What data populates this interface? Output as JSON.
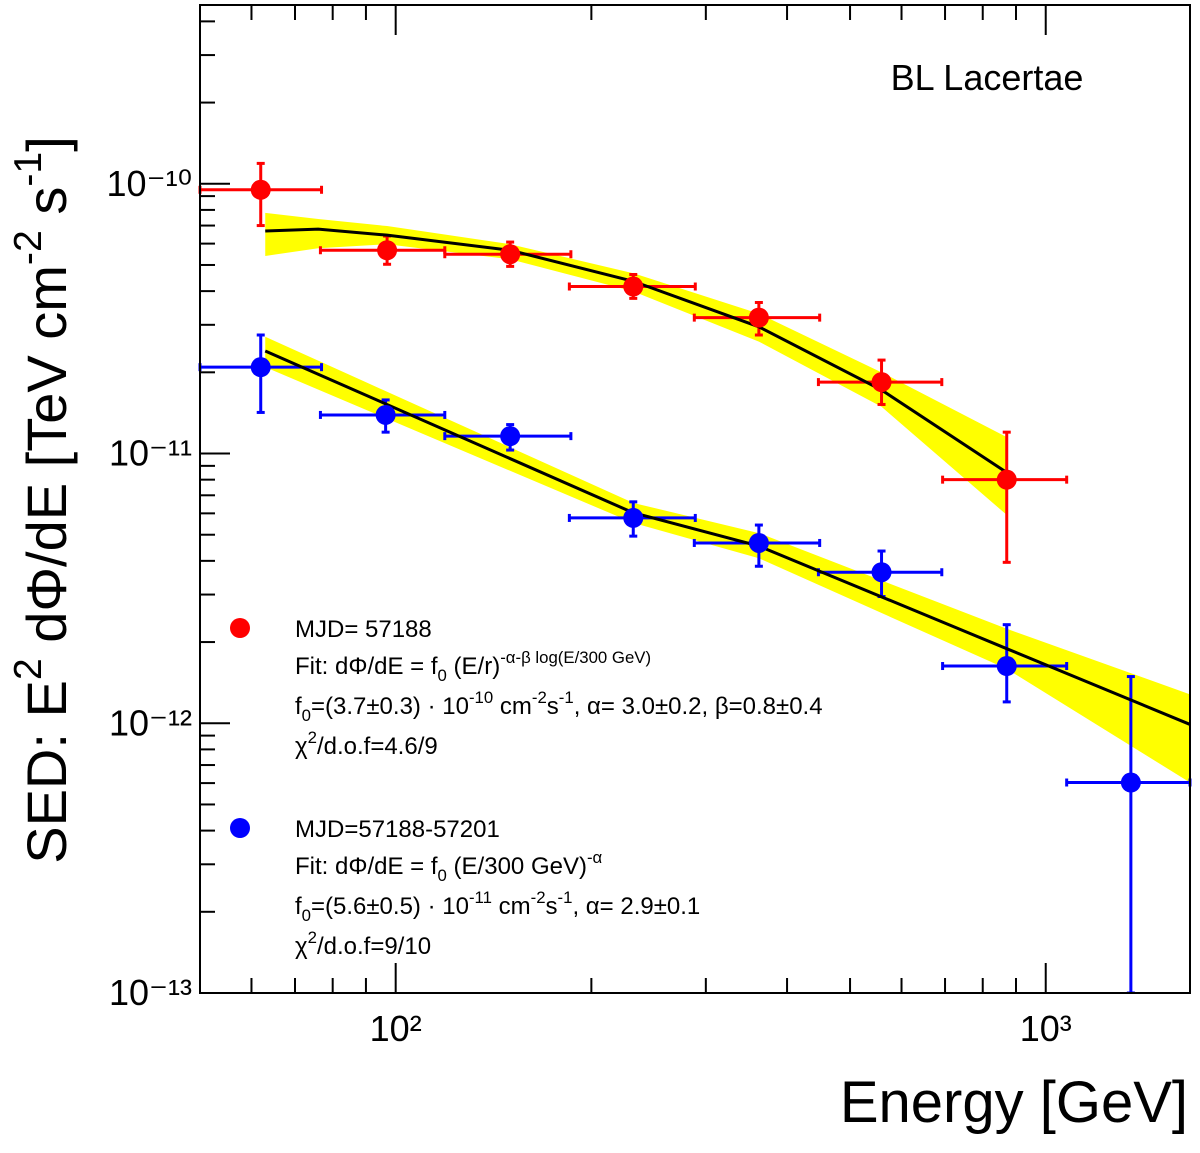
{
  "chart_data": {
    "type": "scatter",
    "annotation": "BL Lacertae",
    "xlabel": "Energy [GeV]",
    "ylabel": [
      "SED: E",
      {
        "sup": "2"
      },
      " dΦ/dE [TeV cm",
      {
        "sup": "-2"
      },
      " s",
      {
        "sup": "-1"
      },
      "]"
    ],
    "xscale": "log",
    "yscale": "log",
    "xlim": [
      50,
      1667
    ],
    "ylim": [
      1e-13,
      4.6e-10
    ],
    "xticks": [
      {
        "value": 100,
        "label": "10²"
      },
      {
        "value": 1000,
        "label": "10³"
      }
    ],
    "xminorticks": [
      60,
      70,
      80,
      90,
      200,
      300,
      400,
      500,
      600,
      700,
      800,
      900
    ],
    "yticks": [
      {
        "value": 1e-13,
        "label": "10⁻¹³"
      },
      {
        "value": 1e-12,
        "label": "10⁻¹²"
      },
      {
        "value": 1e-11,
        "label": "10⁻¹¹"
      },
      {
        "value": 1e-10,
        "label": "10⁻¹⁰"
      }
    ],
    "yminorticks": [
      2e-13,
      3e-13,
      4e-13,
      5e-13,
      6e-13,
      7e-13,
      8e-13,
      9e-13,
      2e-12,
      3e-12,
      4e-12,
      5e-12,
      6e-12,
      7e-12,
      8e-12,
      9e-12,
      2e-11,
      3e-11,
      4e-11,
      5e-11,
      6e-11,
      7e-11,
      8e-11,
      9e-11,
      2e-10,
      3e-10,
      4e-10
    ],
    "fit_band_color": "#ffff00",
    "fit_line_color": "#000000",
    "series": [
      {
        "name": "MJD= 57188",
        "color": "#ff0000",
        "x": [
          62,
          97,
          150,
          232,
          362,
          559,
          871
        ],
        "y": [
          9.5e-11,
          5.67e-11,
          5.48e-11,
          4.16e-11,
          3.19e-11,
          1.84e-11,
          8e-12
        ],
        "xlow": [
          50,
          76.6,
          119,
          185,
          288,
          447,
          694
        ],
        "xhigh": [
          76.9,
          119,
          186,
          289,
          449,
          692,
          1077
        ],
        "ylow": [
          7e-11,
          5.03e-11,
          4.94e-11,
          3.76e-11,
          2.75e-11,
          1.52e-11,
          3.95e-12
        ],
        "yhigh": [
          1.19e-10,
          6.4e-11,
          6.08e-11,
          4.61e-11,
          3.63e-11,
          2.22e-11,
          1.2e-11
        ],
        "fit": {
          "x": [
            63,
            76,
            97,
            150,
            232,
            362,
            559,
            871
          ],
          "y": [
            6.68e-11,
            6.79e-11,
            6.45e-11,
            5.67e-11,
            4.35e-11,
            2.95e-11,
            1.72e-11,
            8.5e-12
          ],
          "band_low": [
            5.4e-11,
            5.77e-11,
            5.97e-11,
            5.25e-11,
            3.99e-11,
            2.6e-11,
            1.49e-11,
            5.92e-12
          ],
          "band_high": [
            7.8e-11,
            7.4e-11,
            6.97e-11,
            5.97e-11,
            4.66e-11,
            3.3e-11,
            2e-11,
            1.15e-11
          ]
        },
        "notes": [
          [
            "Fit: dΦ/dE = f",
            {
              "sub": "0"
            },
            " (E/r)",
            {
              "sup": "-α-β log(E/300 GeV)"
            }
          ],
          [
            "f",
            {
              "sub": "0"
            },
            "=(3.7±0.3) · 10",
            {
              "sup": "-10"
            },
            " cm",
            {
              "sup": "-2"
            },
            "s",
            {
              "sup": "-1"
            },
            ", α= 3.0±0.2, β=0.8±0.4"
          ],
          [
            "χ",
            {
              "sup": "2"
            },
            "/d.o.f=4.6/9"
          ]
        ]
      },
      {
        "name": "MJD=57188-57201",
        "color": "#0000ff",
        "x": [
          62,
          96.5,
          150,
          232,
          362,
          559,
          871,
          1352
        ],
        "y": [
          2.09e-11,
          1.39e-11,
          1.16e-11,
          5.77e-12,
          4.66e-12,
          3.63e-12,
          1.63e-12,
          6.03e-13
        ],
        "xlow": [
          50,
          76.6,
          119,
          185,
          288,
          447,
          694,
          1077
        ],
        "xhigh": [
          76.9,
          119,
          186,
          289,
          449,
          692,
          1077,
          1667
        ],
        "ylow": [
          1.42e-11,
          1.2e-11,
          1.03e-11,
          4.94e-12,
          3.82e-12,
          2.95e-12,
          1.2e-12,
          1e-13
        ],
        "yhigh": [
          2.75e-11,
          1.58e-11,
          1.28e-11,
          6.62e-12,
          5.43e-12,
          4.35e-12,
          2.32e-12,
          1.49e-12
        ],
        "fit": {
          "x": [
            63,
            232,
            362,
            871,
            1667
          ],
          "y": [
            2.4e-11,
            6.03e-12,
            4.54e-12,
            1.89e-12,
            9.9e-13
          ],
          "band_low": [
            2.09e-11,
            5.53e-12,
            4.09e-12,
            1.59e-12,
            6.03e-13
          ],
          "band_high": [
            2.71e-11,
            6.56e-12,
            5.07e-12,
            2.24e-12,
            1.28e-12
          ]
        },
        "notes": [
          [
            "Fit: dΦ/dE = f",
            {
              "sub": "0"
            },
            " (E/300 GeV)",
            {
              "sup": "-α"
            }
          ],
          [
            "f",
            {
              "sub": "0"
            },
            "=(5.6±0.5) · 10",
            {
              "sup": "-11"
            },
            " cm",
            {
              "sup": "-2"
            },
            "s",
            {
              "sup": "-1"
            },
            ", α= 2.9±0.1"
          ],
          [
            "χ",
            {
              "sup": "2"
            },
            "/d.o.f=9/10"
          ]
        ]
      }
    ]
  }
}
